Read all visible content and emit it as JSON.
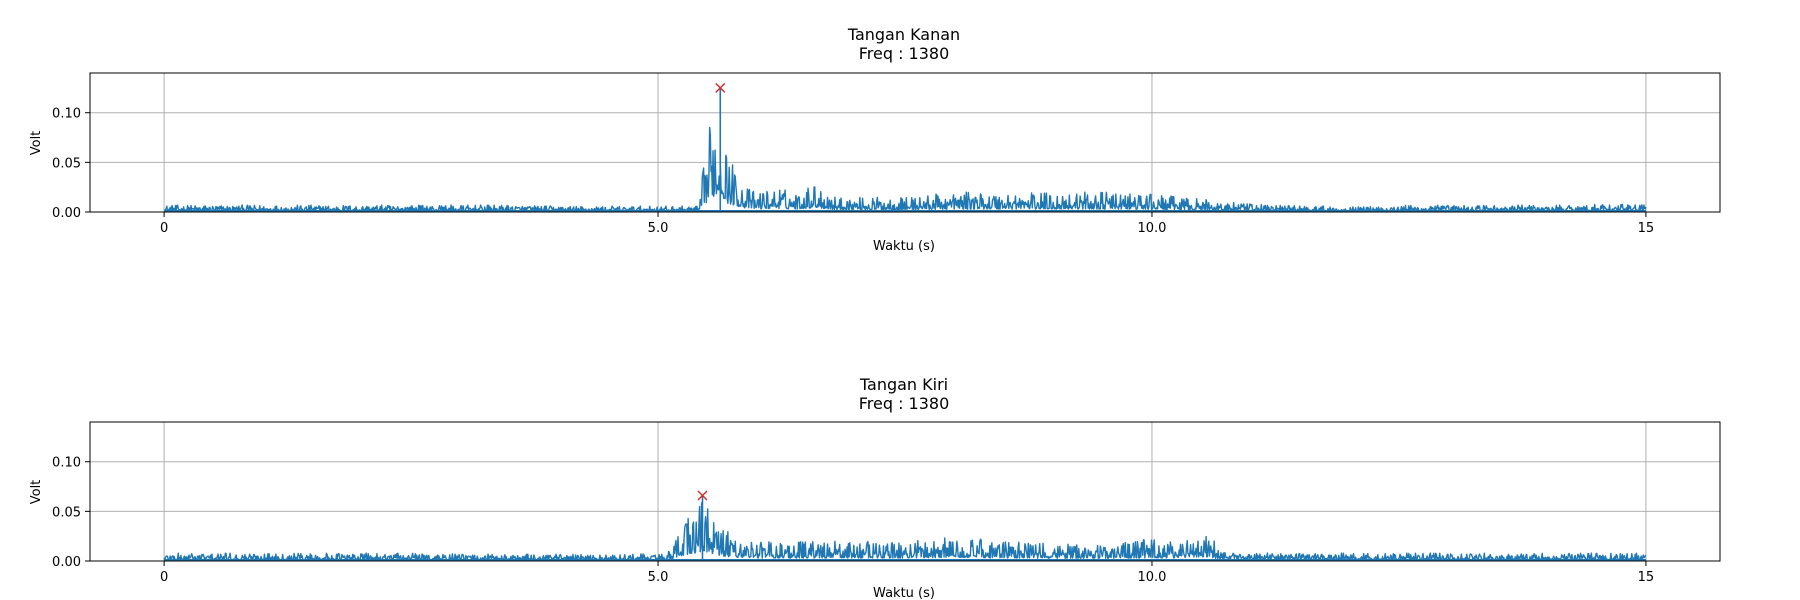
{
  "chart_data": [
    {
      "type": "line",
      "title_line1": "Tangan Kanan",
      "title_line2": "Freq : 1380",
      "xlabel": "Waktu (s)",
      "ylabel": "Volt",
      "xlim": [
        -0.75,
        15.75
      ],
      "ylim": [
        0.0,
        0.14
      ],
      "xticks": [
        0,
        5.0,
        10.0,
        15
      ],
      "xtick_labels": [
        "0",
        "5.0",
        "10.0",
        "15"
      ],
      "yticks": [
        0.0,
        0.05,
        0.1
      ],
      "ytick_labels": [
        "0.00",
        "0.05",
        "0.10"
      ],
      "grid": true,
      "series_color": "#1f77b4",
      "peak_marker": {
        "x": 5.63,
        "y": 0.125,
        "symbol": "x",
        "color": "#d62728"
      },
      "envelope": {
        "x": [
          0,
          0.5,
          1.0,
          1.5,
          2.0,
          2.5,
          3.0,
          3.5,
          4.0,
          4.5,
          5.0,
          5.3,
          5.42,
          5.45,
          5.5,
          5.55,
          5.6,
          5.63,
          5.7,
          5.8,
          5.9,
          6.0,
          6.2,
          6.4,
          6.6,
          6.8,
          7.0,
          7.5,
          8.0,
          8.5,
          9.0,
          9.5,
          10.0,
          10.5,
          11.0,
          11.5,
          12.0,
          12.5,
          13.0,
          13.5,
          14.0,
          14.5,
          15.0
        ],
        "y": [
          0.007,
          0.007,
          0.007,
          0.007,
          0.007,
          0.007,
          0.007,
          0.007,
          0.006,
          0.006,
          0.006,
          0.006,
          0.006,
          0.038,
          0.07,
          0.11,
          0.095,
          0.125,
          0.06,
          0.04,
          0.025,
          0.02,
          0.025,
          0.02,
          0.03,
          0.015,
          0.015,
          0.015,
          0.02,
          0.02,
          0.02,
          0.02,
          0.018,
          0.013,
          0.008,
          0.007,
          0.005,
          0.007,
          0.007,
          0.007,
          0.007,
          0.008,
          0.008
        ]
      }
    },
    {
      "type": "line",
      "title_line1": "Tangan Kiri",
      "title_line2": "Freq :  1380",
      "xlabel": "Waktu (s)",
      "ylabel": "Volt",
      "xlim": [
        -0.75,
        15.75
      ],
      "ylim": [
        0.0,
        0.14
      ],
      "xticks": [
        0,
        5.0,
        10.0,
        15
      ],
      "xtick_labels": [
        "0",
        "5.0",
        "10.0",
        "15"
      ],
      "yticks": [
        0.0,
        0.05,
        0.1
      ],
      "ytick_labels": [
        "0.00",
        "0.05",
        "0.10"
      ],
      "grid": true,
      "series_color": "#1f77b4",
      "peak_marker": {
        "x": 5.45,
        "y": 0.066,
        "symbol": "x",
        "color": "#d62728"
      },
      "envelope": {
        "x": [
          0,
          0.5,
          1.0,
          1.5,
          2.0,
          2.5,
          3.0,
          3.5,
          4.0,
          4.5,
          5.0,
          5.15,
          5.2,
          5.3,
          5.4,
          5.45,
          5.5,
          5.6,
          5.7,
          5.8,
          6.0,
          6.5,
          7.0,
          7.5,
          8.0,
          8.5,
          9.0,
          9.5,
          10.0,
          10.2,
          10.5,
          10.6,
          10.7,
          11.0,
          11.5,
          12.0,
          12.5,
          13.0,
          13.5,
          14.0,
          14.5,
          15.0
        ],
        "y": [
          0.008,
          0.008,
          0.008,
          0.008,
          0.008,
          0.008,
          0.007,
          0.007,
          0.007,
          0.006,
          0.008,
          0.01,
          0.03,
          0.045,
          0.055,
          0.066,
          0.06,
          0.035,
          0.03,
          0.025,
          0.02,
          0.02,
          0.02,
          0.02,
          0.025,
          0.02,
          0.018,
          0.018,
          0.022,
          0.02,
          0.028,
          0.025,
          0.009,
          0.008,
          0.008,
          0.008,
          0.008,
          0.008,
          0.008,
          0.008,
          0.008,
          0.008
        ]
      }
    }
  ]
}
